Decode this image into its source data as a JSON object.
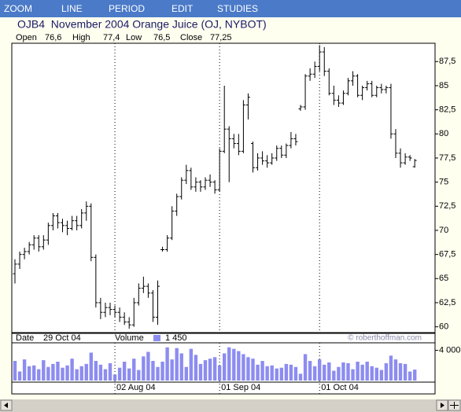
{
  "menu": [
    "ZOOM",
    "LINE",
    "PERIOD",
    "EDIT",
    "STUDIES"
  ],
  "chart_data": {
    "type": "ohlc",
    "title": "OJB4  November 2004 Orange Juice (OJ, NYBOT)",
    "readout": [
      {
        "label": "Open",
        "value": "76,6"
      },
      {
        "label": "High",
        "value": "77,4"
      },
      {
        "label": "Low",
        "value": "76,5"
      },
      {
        "label": "Close",
        "value": "77,25"
      }
    ],
    "date_readout": {
      "label": "Date",
      "value": "29 Oct 04"
    },
    "volume_readout": {
      "label": "Volume",
      "value": "1 450"
    },
    "watermark": "© roberthoffman.com",
    "color": "#000000",
    "categories": [
      null,
      null,
      null,
      null,
      null,
      null,
      null,
      null,
      null,
      null,
      null,
      null,
      null,
      null,
      null,
      null,
      null,
      null,
      null,
      null,
      null,
      "02 Aug 04",
      null,
      null,
      null,
      null,
      null,
      null,
      null,
      null,
      null,
      null,
      null,
      null,
      null,
      null,
      null,
      null,
      null,
      null,
      null,
      null,
      null,
      "01 Sep 04",
      null,
      null,
      null,
      null,
      null,
      null,
      null,
      null,
      null,
      null,
      null,
      null,
      null,
      null,
      null,
      null,
      null,
      null,
      null,
      null,
      "01 Oct 04",
      null,
      null,
      null,
      null,
      null,
      null,
      null,
      null,
      null,
      null,
      null,
      null,
      null,
      null,
      null,
      null,
      null,
      null,
      null,
      null
    ],
    "open": [
      65.5,
      66.5,
      67.5,
      67.8,
      68.5,
      69.2,
      68.3,
      69.0,
      70.5,
      71.5,
      70.8,
      70.5,
      70.2,
      71.0,
      70.5,
      71.8,
      72.5,
      67.2,
      62.5,
      61.5,
      62.0,
      61.8,
      61.5,
      61.0,
      60.5,
      60.2,
      62.5,
      64.0,
      64.2,
      63.5,
      61.0,
      68.0,
      68.0,
      69.2,
      72.0,
      73.5,
      75.2,
      76.2,
      74.5,
      75.0,
      74.5,
      75.2,
      75.0,
      74.2,
      78.2,
      80.5,
      79.5,
      79.0,
      78.2,
      83.0,
      79.0,
      76.5,
      77.5,
      77.2,
      77.0,
      77.5,
      78.5,
      77.8,
      78.8,
      79.5,
      82.6,
      82.8,
      86.0,
      86.2,
      87.0,
      88.5,
      86.5,
      84.2,
      83.5,
      83.2,
      84.2,
      85.5,
      86.0,
      84.0,
      84.8,
      85.2,
      84.0,
      84.8,
      84.6,
      84.8,
      80.0,
      78.0,
      77.0,
      77.6,
      76.6
    ],
    "high": [
      67.0,
      67.8,
      68.2,
      68.8,
      69.5,
      69.5,
      69.5,
      70.8,
      71.8,
      71.8,
      71.2,
      71.0,
      71.5,
      71.5,
      72.2,
      73.0,
      72.8,
      67.5,
      63.0,
      62.5,
      62.5,
      62.2,
      62.0,
      61.5,
      61.0,
      63.0,
      64.5,
      65.2,
      64.5,
      63.8,
      64.8,
      68.3,
      69.5,
      72.5,
      73.8,
      75.5,
      76.8,
      76.5,
      75.5,
      75.2,
      75.5,
      75.8,
      75.2,
      78.5,
      85.0,
      80.8,
      80.0,
      80.0,
      83.5,
      84.2,
      79.2,
      78.0,
      78.2,
      77.8,
      78.0,
      78.8,
      78.8,
      79.0,
      80.2,
      80.0,
      83.0,
      86.2,
      86.8,
      87.5,
      89.2,
      89.0,
      86.8,
      85.0,
      84.0,
      84.5,
      85.8,
      86.5,
      86.2,
      85.0,
      85.5,
      85.5,
      85.0,
      85.2,
      85.0,
      85.2,
      80.5,
      78.5,
      78.0,
      77.8,
      77.4
    ],
    "low": [
      64.5,
      66.0,
      67.0,
      67.5,
      68.0,
      67.8,
      68.0,
      68.5,
      70.0,
      70.2,
      69.8,
      69.5,
      70.0,
      70.0,
      70.2,
      71.0,
      66.8,
      62.0,
      60.8,
      61.0,
      61.2,
      61.0,
      60.5,
      60.2,
      59.8,
      60.0,
      62.2,
      63.5,
      63.0,
      60.5,
      60.2,
      67.8,
      67.8,
      69.0,
      71.5,
      73.2,
      74.8,
      74.2,
      74.0,
      74.0,
      74.2,
      74.5,
      73.8,
      74.0,
      78.0,
      75.0,
      78.5,
      77.8,
      78.0,
      81.5,
      76.0,
      76.2,
      76.8,
      76.5,
      76.8,
      77.2,
      77.5,
      77.5,
      78.5,
      78.8,
      82.4,
      82.5,
      85.5,
      85.8,
      86.5,
      86.0,
      84.0,
      83.0,
      82.8,
      83.0,
      84.0,
      85.0,
      83.8,
      83.5,
      84.5,
      83.8,
      83.8,
      84.2,
      84.2,
      79.5,
      77.5,
      76.5,
      76.8,
      77.2,
      76.5
    ],
    "close": [
      66.5,
      67.5,
      67.8,
      68.5,
      69.2,
      68.3,
      69.0,
      70.5,
      71.5,
      70.8,
      70.5,
      70.2,
      71.0,
      70.5,
      71.8,
      72.5,
      67.2,
      62.5,
      61.5,
      62.0,
      61.8,
      61.5,
      61.0,
      60.5,
      60.2,
      62.5,
      64.0,
      64.2,
      63.5,
      61.0,
      64.2,
      68.0,
      69.2,
      72.0,
      73.5,
      75.2,
      76.2,
      74.5,
      75.0,
      74.5,
      75.2,
      75.0,
      74.2,
      78.2,
      80.5,
      79.5,
      79.0,
      78.2,
      83.0,
      83.8,
      76.5,
      77.5,
      77.2,
      77.0,
      77.5,
      78.5,
      77.8,
      78.8,
      79.5,
      79.2,
      82.8,
      86.0,
      86.2,
      87.0,
      88.5,
      86.5,
      84.2,
      83.5,
      83.2,
      84.2,
      85.5,
      86.0,
      84.0,
      84.8,
      85.2,
      84.0,
      84.8,
      84.6,
      84.8,
      80.0,
      78.0,
      77.0,
      77.6,
      77.5,
      77.25
    ],
    "ylim": [
      59.4,
      89.4
    ],
    "yticks": [
      60,
      {
        "value": 62.5,
        "label": "62,5"
      },
      65,
      {
        "value": 67.5,
        "label": "67,5"
      },
      70,
      {
        "value": 72.5,
        "label": "72,5"
      },
      75,
      {
        "value": 77.5,
        "label": "77,5"
      },
      80,
      {
        "value": 82.5,
        "label": "82,5"
      },
      85,
      {
        "value": 87.5,
        "label": "87,5"
      }
    ],
    "volume": {
      "color": "#8c8cf0",
      "values": [
        2600,
        1200,
        2800,
        1900,
        2000,
        1500,
        2700,
        1800,
        2200,
        2500,
        1700,
        2000,
        2900,
        1500,
        1900,
        2200,
        3700,
        2600,
        2100,
        1500,
        2300,
        800,
        1700,
        2500,
        1600,
        2900,
        1400,
        3200,
        3800,
        2600,
        1800,
        2500,
        4400,
        2800,
        4300,
        3600,
        1800,
        4200,
        3400,
        2200,
        2700,
        2900,
        3100,
        2000,
        3600,
        4400,
        4200,
        3900,
        3500,
        3100,
        2900,
        2100,
        2600,
        1900,
        2000,
        1600,
        1700,
        2200,
        2100,
        1800,
        900,
        3500,
        2600,
        1900,
        2800,
        2100,
        2400,
        1300,
        1800,
        2400,
        2300,
        1500,
        2500,
        2100,
        2500,
        1900,
        1700,
        1400,
        2300,
        3300,
        2800,
        2300,
        2200,
        1200,
        1450
      ],
      "ylim": [
        0,
        5000
      ],
      "yticks": [
        {
          "value": 4000,
          "label": "4 000"
        }
      ]
    },
    "xgrid": true
  }
}
